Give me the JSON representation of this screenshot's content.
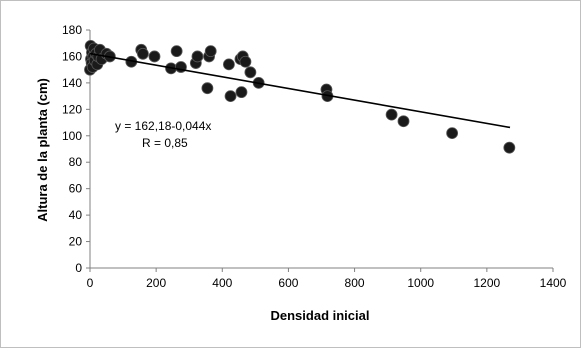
{
  "chart_data": {
    "type": "scatter",
    "xlabel": "Densidad inicial",
    "ylabel": "Altura de la planta (cm)",
    "xlim": [
      0,
      1400
    ],
    "ylim": [
      0,
      180
    ],
    "xticks": [
      0,
      200,
      400,
      600,
      800,
      1000,
      1200,
      1400
    ],
    "yticks": [
      0,
      20,
      40,
      60,
      80,
      100,
      120,
      140,
      160,
      180
    ],
    "grid": false,
    "legend": "none",
    "trendline": {
      "type": "linear",
      "intercept": 162.18,
      "slope": -0.044,
      "x_range": [
        0,
        1270
      ]
    },
    "annotations": [
      "y = 162,18-0,044x",
      "R = 0,85"
    ],
    "marker_color": "#1a1a1a",
    "line_color": "#000000",
    "points": [
      {
        "x": 0,
        "y": 150
      },
      {
        "x": 2,
        "y": 168
      },
      {
        "x": 3,
        "y": 158
      },
      {
        "x": 5,
        "y": 155
      },
      {
        "x": 6,
        "y": 163
      },
      {
        "x": 8,
        "y": 152
      },
      {
        "x": 10,
        "y": 160
      },
      {
        "x": 12,
        "y": 166
      },
      {
        "x": 14,
        "y": 157
      },
      {
        "x": 18,
        "y": 162
      },
      {
        "x": 22,
        "y": 154
      },
      {
        "x": 25,
        "y": 160
      },
      {
        "x": 30,
        "y": 165
      },
      {
        "x": 35,
        "y": 158
      },
      {
        "x": 50,
        "y": 162
      },
      {
        "x": 60,
        "y": 160
      },
      {
        "x": 125,
        "y": 156
      },
      {
        "x": 155,
        "y": 165
      },
      {
        "x": 160,
        "y": 162
      },
      {
        "x": 195,
        "y": 160
      },
      {
        "x": 245,
        "y": 151
      },
      {
        "x": 262,
        "y": 164
      },
      {
        "x": 275,
        "y": 152
      },
      {
        "x": 320,
        "y": 155
      },
      {
        "x": 325,
        "y": 160
      },
      {
        "x": 355,
        "y": 136
      },
      {
        "x": 360,
        "y": 160
      },
      {
        "x": 365,
        "y": 164
      },
      {
        "x": 420,
        "y": 154
      },
      {
        "x": 425,
        "y": 130
      },
      {
        "x": 455,
        "y": 158
      },
      {
        "x": 458,
        "y": 133
      },
      {
        "x": 462,
        "y": 160
      },
      {
        "x": 470,
        "y": 156
      },
      {
        "x": 485,
        "y": 148
      },
      {
        "x": 510,
        "y": 140
      },
      {
        "x": 715,
        "y": 135
      },
      {
        "x": 718,
        "y": 130
      },
      {
        "x": 912,
        "y": 116
      },
      {
        "x": 948,
        "y": 111
      },
      {
        "x": 1095,
        "y": 102
      },
      {
        "x": 1268,
        "y": 91
      }
    ]
  }
}
